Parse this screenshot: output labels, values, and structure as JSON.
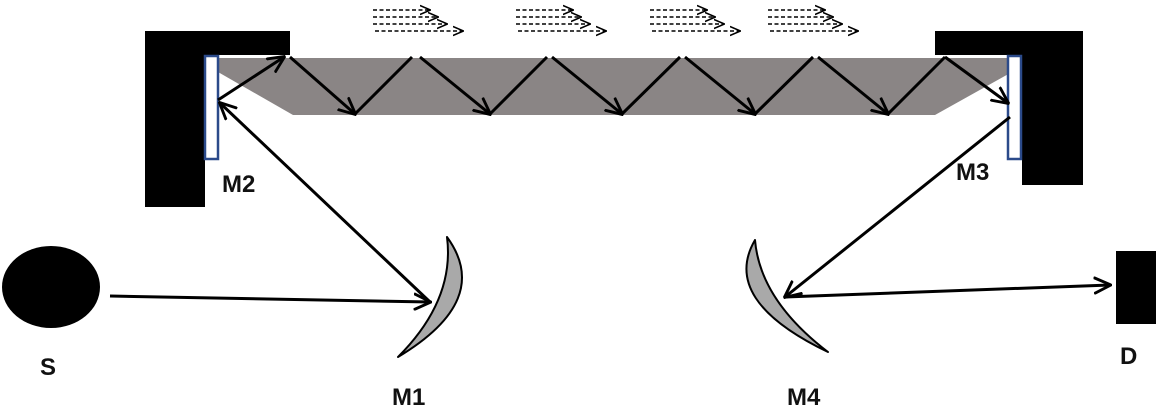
{
  "diagram": {
    "labels": {
      "source": "S",
      "mirror_1": "M1",
      "mirror_2": "M2",
      "mirror_3": "M3",
      "mirror_4": "M4",
      "detector": "D"
    }
  }
}
